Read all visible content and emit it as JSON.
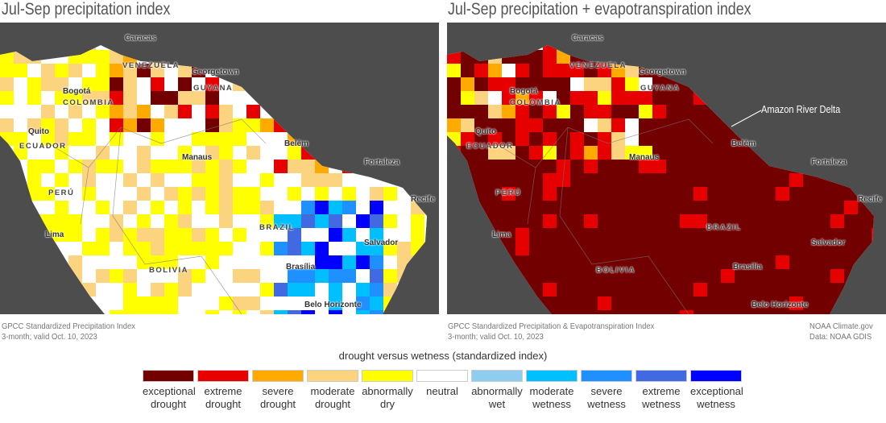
{
  "left": {
    "title": "Jul-Sep precipitation index",
    "caption_line1": "GPCC Standardized Precipitation Index",
    "caption_line2": "3-month; valid Oct. 10, 2023"
  },
  "right": {
    "title": "Jul-Sep precipitation + evapotranspiration index",
    "caption_line1": "GPCC Standardized Precipitation & Evapotranspiration Index",
    "caption_line2": "3-month; valid Oct. 10, 2023",
    "annotation": "Amazon River Delta"
  },
  "credit": {
    "line1": "NOAA Climate.gov",
    "line2": "Data: NOAA GDIS"
  },
  "places": {
    "caracas": "Caracas",
    "venezuela": "VENEZUELA",
    "georgetown": "Georgetown",
    "guyana": "GUYANA",
    "bogota": "Bogotá",
    "colombia": "COLOMBIA",
    "quito": "Quito",
    "ecuador": "ECUADOR",
    "belem": "Belém",
    "manaus": "Manaus",
    "fortaleza": "Fortaleza",
    "peru": "PERÚ",
    "recife": "Recife",
    "brazil": "BRAZIL",
    "lima": "Lima",
    "salvador": "Salvador",
    "bolivia": "BOLIVIA",
    "brasilia": "Brasília",
    "belo_horizonte": "Belo Horizonte"
  },
  "legend": {
    "title": "drought versus wetness (standardized index)",
    "items": [
      {
        "line1": "exceptional",
        "line2": "drought",
        "color": "#730000"
      },
      {
        "line1": "extreme",
        "line2": "drought",
        "color": "#e60000"
      },
      {
        "line1": "severe",
        "line2": "drought",
        "color": "#ffaa00"
      },
      {
        "line1": "moderate",
        "line2": "drought",
        "color": "#fcd37f"
      },
      {
        "line1": "abnormally",
        "line2": "dry",
        "color": "#ffff00"
      },
      {
        "line1": "neutral",
        "line2": "",
        "color": "#ffffff"
      },
      {
        "line1": "abnormally",
        "line2": "wet",
        "color": "#8ecdf0"
      },
      {
        "line1": "moderate",
        "line2": "wetness",
        "color": "#00bfff"
      },
      {
        "line1": "severe",
        "line2": "wetness",
        "color": "#1e90ff"
      },
      {
        "line1": "extreme",
        "line2": "wetness",
        "color": "#4169e1"
      },
      {
        "line1": "exceptional",
        "line2": "wetness",
        "color": "#0000ff"
      }
    ]
  }
}
